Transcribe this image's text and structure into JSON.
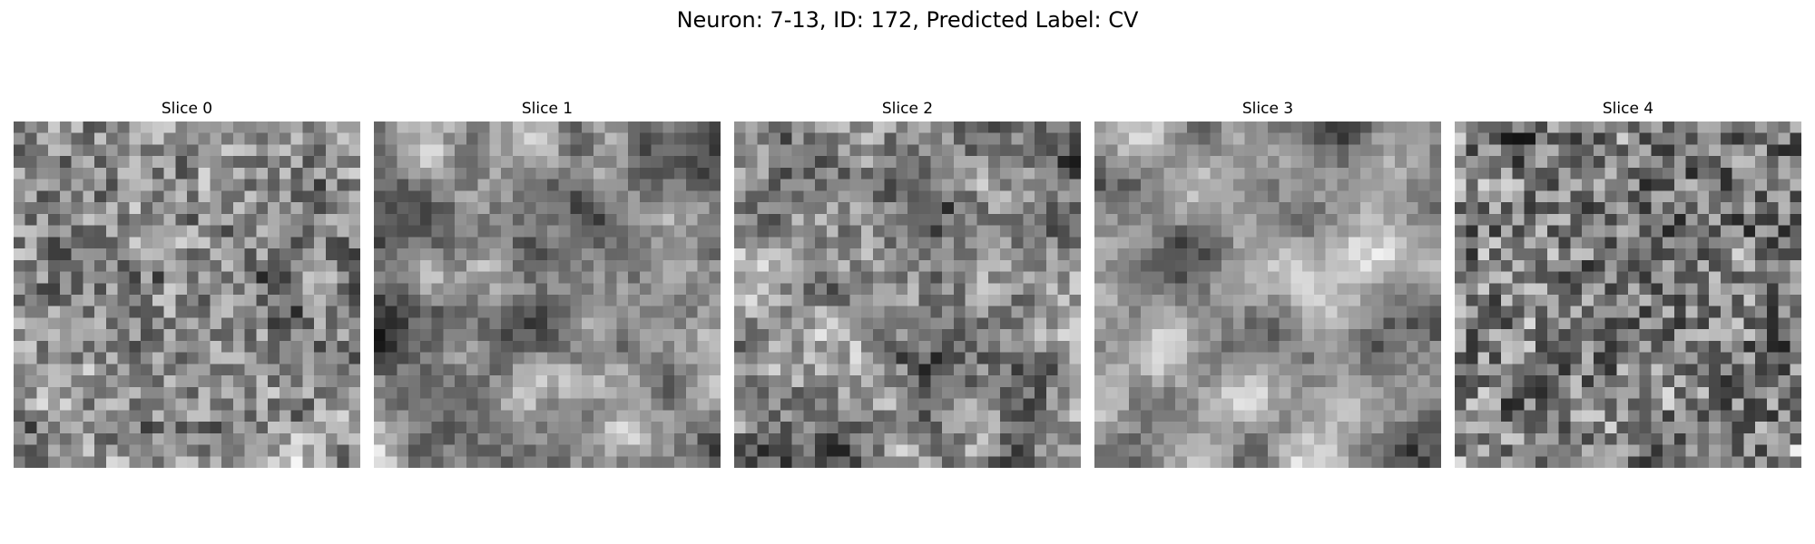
{
  "figure": {
    "title": "Neuron: 7-13, ID: 172, Predicted Label: CV",
    "colormap": "grayscale",
    "grid_size": 30
  },
  "panels": [
    {
      "title": "Slice 0"
    },
    {
      "title": "Slice 1"
    },
    {
      "title": "Slice 2"
    },
    {
      "title": "Slice 3"
    },
    {
      "title": "Slice 4"
    }
  ]
}
